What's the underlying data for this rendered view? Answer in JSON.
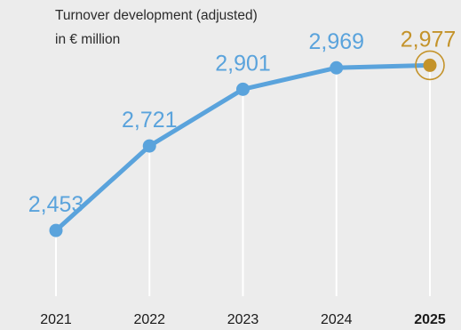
{
  "chart_data": {
    "type": "line",
    "title_lines": [
      "Turnover development (adjusted)",
      "in € million"
    ],
    "categories": [
      "2021",
      "2022",
      "2023",
      "2024",
      "2025"
    ],
    "values": [
      2453,
      2721,
      2901,
      2969,
      2977
    ],
    "value_labels": [
      "2,453",
      "2,721",
      "2,901",
      "2,969",
      "2,977"
    ],
    "highlight_index": 4,
    "ylim": [
      2250,
      3060
    ],
    "grid": false,
    "colors": {
      "line": "#5aa3dc",
      "highlight": "#c4932a",
      "guide": "#ffffff",
      "tick_text": "#1a1a1a",
      "background": "#ececec"
    }
  }
}
